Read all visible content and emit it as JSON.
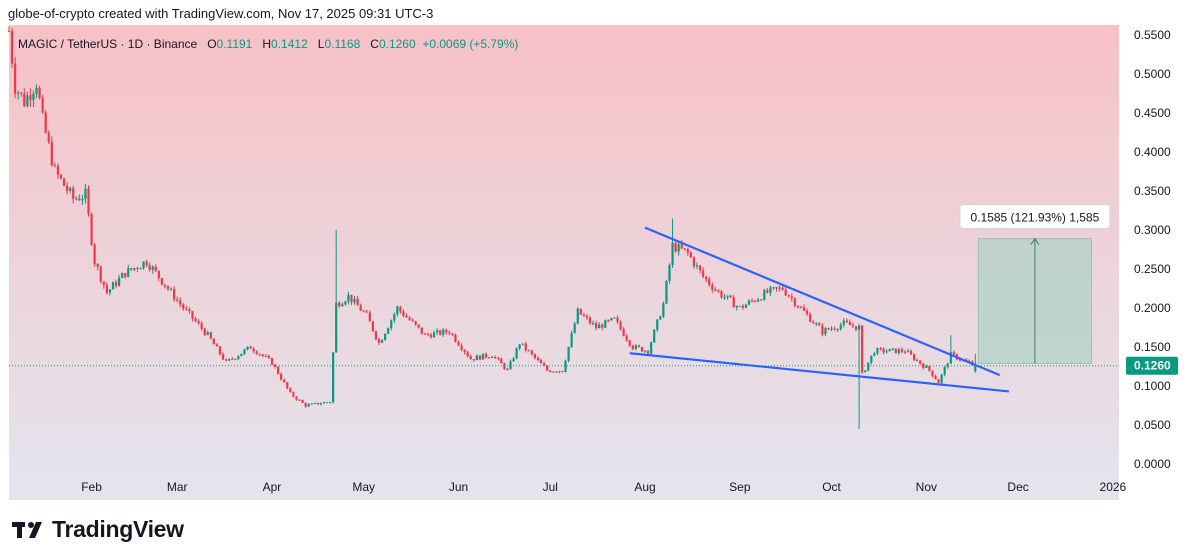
{
  "header": {
    "text": "globe-of-crypto created with TradingView.com, Nov 17, 2025 09:31 UTC-3"
  },
  "legend": {
    "symbol": "MAGIC / TetherUS · 1D · Binance",
    "open_key": "O",
    "open": "0.1191",
    "high_key": "H",
    "high": "0.1412",
    "low_key": "L",
    "low": "0.1168",
    "close_key": "C",
    "close": "0.1260",
    "change": "+0.0069 (+5.79%)"
  },
  "footer": {
    "brand": "TradingView"
  },
  "colors": {
    "up": "#089981",
    "down": "#f23645",
    "trendline": "#2962ff",
    "bg_top": "#f7c1c6",
    "bg_bottom": "#e3e5ee",
    "price_label": "#089981",
    "measure_fill": "#b7d3c9"
  },
  "chart_data": {
    "type": "candlestick",
    "symbol": "MAGIC / TetherUS",
    "interval": "1D",
    "exchange": "Binance",
    "x_axis": {
      "type": "date",
      "range": [
        "2025-01-05",
        "2026-01-03"
      ],
      "ticks": [
        {
          "label": "Feb",
          "date": "2025-02-01"
        },
        {
          "label": "Mar",
          "date": "2025-03-01"
        },
        {
          "label": "Apr",
          "date": "2025-04-01"
        },
        {
          "label": "May",
          "date": "2025-05-01"
        },
        {
          "label": "Jun",
          "date": "2025-06-01"
        },
        {
          "label": "Jul",
          "date": "2025-07-01"
        },
        {
          "label": "Aug",
          "date": "2025-08-01"
        },
        {
          "label": "Sep",
          "date": "2025-09-01"
        },
        {
          "label": "Oct",
          "date": "2025-10-01"
        },
        {
          "label": "Nov",
          "date": "2025-11-01"
        },
        {
          "label": "Dec",
          "date": "2025-12-01"
        },
        {
          "label": "2026",
          "date": "2026-01-01"
        }
      ]
    },
    "y_axis": {
      "range": [
        0.0,
        0.56
      ],
      "ticks": [
        "0.5500",
        "0.5000",
        "0.4500",
        "0.4000",
        "0.3500",
        "0.3000",
        "0.2500",
        "0.2000",
        "0.1500",
        "0.1000",
        "0.0500",
        "0.0000"
      ]
    },
    "last_price": {
      "value": 0.126,
      "label": "0.1260"
    },
    "price_anchors": [
      {
        "date": "2025-01-05",
        "close": 0.555
      },
      {
        "date": "2025-01-07",
        "close": 0.485
      },
      {
        "date": "2025-01-10",
        "close": 0.465
      },
      {
        "date": "2025-01-14",
        "close": 0.49
      },
      {
        "date": "2025-01-16",
        "close": 0.44
      },
      {
        "date": "2025-01-20",
        "close": 0.375
      },
      {
        "date": "2025-01-26",
        "close": 0.34
      },
      {
        "date": "2025-01-30",
        "close": 0.345
      },
      {
        "date": "2025-02-02",
        "close": 0.26
      },
      {
        "date": "2025-02-06",
        "close": 0.22
      },
      {
        "date": "2025-02-12",
        "close": 0.245
      },
      {
        "date": "2025-02-19",
        "close": 0.26
      },
      {
        "date": "2025-02-25",
        "close": 0.23
      },
      {
        "date": "2025-03-03",
        "close": 0.2
      },
      {
        "date": "2025-03-11",
        "close": 0.165
      },
      {
        "date": "2025-03-17",
        "close": 0.13
      },
      {
        "date": "2025-03-25",
        "close": 0.15
      },
      {
        "date": "2025-04-01",
        "close": 0.13
      },
      {
        "date": "2025-04-07",
        "close": 0.09
      },
      {
        "date": "2025-04-12",
        "close": 0.075
      },
      {
        "date": "2025-04-20",
        "close": 0.08
      },
      {
        "date": "2025-04-22",
        "close": 0.205
      },
      {
        "date": "2025-04-26",
        "close": 0.215
      },
      {
        "date": "2025-05-02",
        "close": 0.19
      },
      {
        "date": "2025-05-06",
        "close": 0.155
      },
      {
        "date": "2025-05-12",
        "close": 0.2
      },
      {
        "date": "2025-05-21",
        "close": 0.165
      },
      {
        "date": "2025-05-29",
        "close": 0.17
      },
      {
        "date": "2025-06-05",
        "close": 0.135
      },
      {
        "date": "2025-06-12",
        "close": 0.14
      },
      {
        "date": "2025-06-17",
        "close": 0.12
      },
      {
        "date": "2025-06-21",
        "close": 0.155
      },
      {
        "date": "2025-06-30",
        "close": 0.12
      },
      {
        "date": "2025-07-05",
        "close": 0.12
      },
      {
        "date": "2025-07-10",
        "close": 0.195
      },
      {
        "date": "2025-07-16",
        "close": 0.175
      },
      {
        "date": "2025-07-22",
        "close": 0.185
      },
      {
        "date": "2025-07-28",
        "close": 0.15
      },
      {
        "date": "2025-08-02",
        "close": 0.145
      },
      {
        "date": "2025-08-07",
        "close": 0.205
      },
      {
        "date": "2025-08-10",
        "close": 0.28
      },
      {
        "date": "2025-08-15",
        "close": 0.27
      },
      {
        "date": "2025-08-20",
        "close": 0.24
      },
      {
        "date": "2025-08-25",
        "close": 0.22
      },
      {
        "date": "2025-09-01",
        "close": 0.2
      },
      {
        "date": "2025-09-10",
        "close": 0.22
      },
      {
        "date": "2025-09-15",
        "close": 0.225
      },
      {
        "date": "2025-09-22",
        "close": 0.195
      },
      {
        "date": "2025-09-28",
        "close": 0.17
      },
      {
        "date": "2025-10-05",
        "close": 0.18
      },
      {
        "date": "2025-10-10",
        "close": 0.175
      },
      {
        "date": "2025-10-11",
        "close": 0.115
      },
      {
        "date": "2025-10-15",
        "close": 0.145
      },
      {
        "date": "2025-10-25",
        "close": 0.145
      },
      {
        "date": "2025-11-02",
        "close": 0.12
      },
      {
        "date": "2025-11-05",
        "close": 0.105
      },
      {
        "date": "2025-11-09",
        "close": 0.14
      },
      {
        "date": "2025-11-17",
        "close": 0.126
      }
    ],
    "notable_wicks": [
      {
        "date": "2025-04-22",
        "high": 0.3
      },
      {
        "date": "2025-08-10",
        "high": 0.315
      },
      {
        "date": "2025-10-10",
        "low": 0.045
      },
      {
        "date": "2025-11-09",
        "high": 0.165
      }
    ],
    "trendlines": [
      {
        "name": "upper",
        "from": {
          "date": "2025-08-01",
          "price": 0.303
        },
        "to": {
          "date": "2025-11-25",
          "price": 0.114
        }
      },
      {
        "name": "lower",
        "from": {
          "date": "2025-07-27",
          "price": 0.142
        },
        "to": {
          "date": "2025-11-28",
          "price": 0.093
        }
      }
    ],
    "measure": {
      "from": {
        "date": "2025-11-18",
        "price": 0.129
      },
      "to": {
        "date": "2025-12-25",
        "price": 0.289
      },
      "label": "0.1585 (121.93%) 1,585"
    }
  }
}
